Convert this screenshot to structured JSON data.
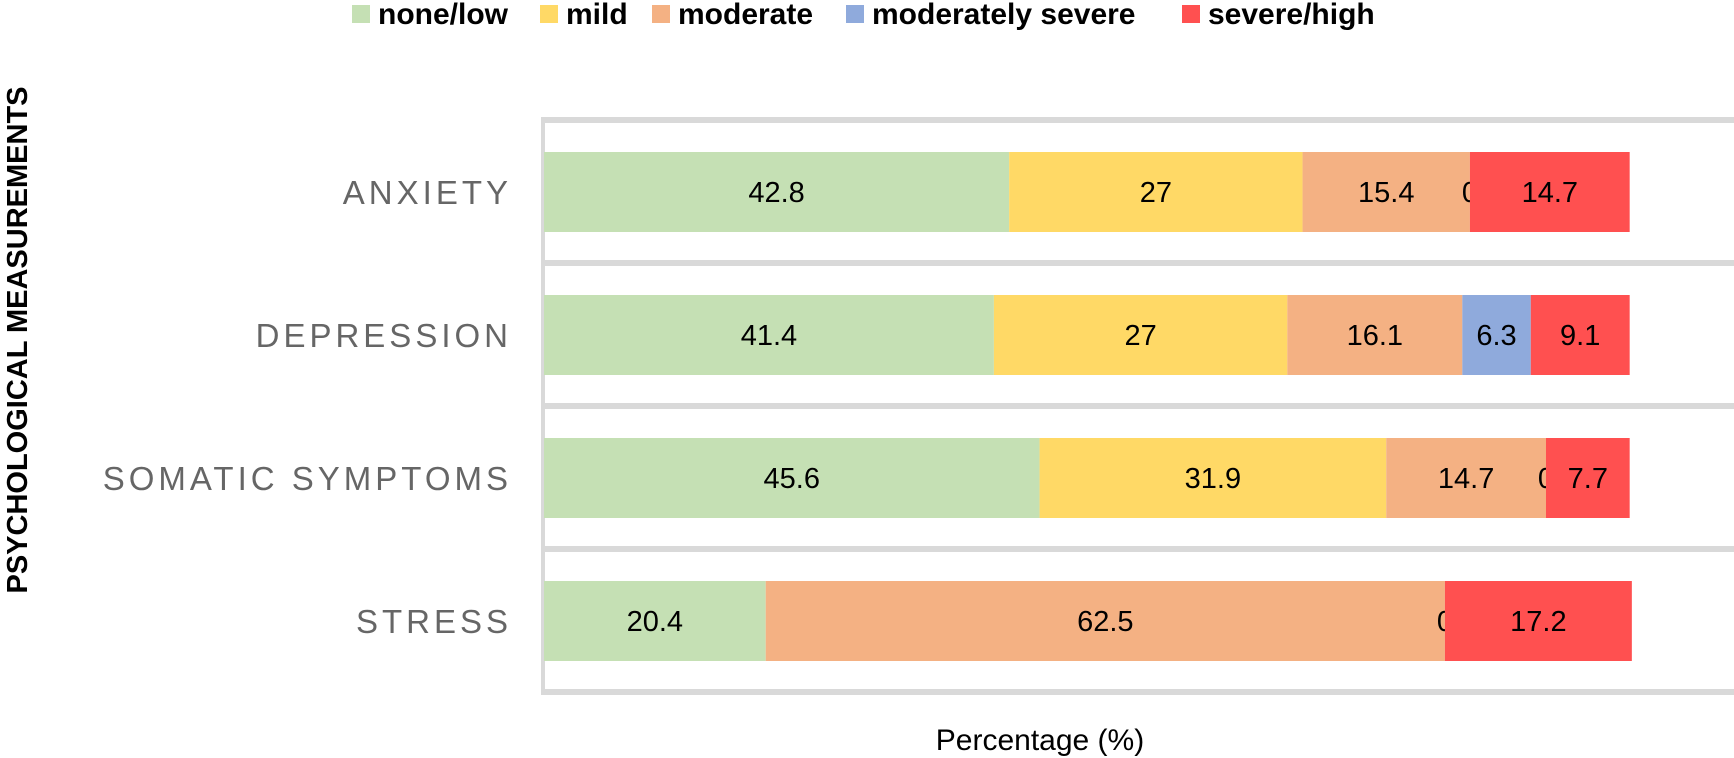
{
  "chart_data": {
    "type": "bar",
    "orientation": "horizontal",
    "stacked": true,
    "title": "",
    "xlabel": "Percentage (%)",
    "ylabel": "PSYCHOLOGICAL MEASUREMENTS",
    "xlim": [
      0,
      109.5
    ],
    "categories": [
      "ANXIETY",
      "DEPRESSION",
      "SOMATIC SYMPTOMS",
      "STRESS"
    ],
    "series": [
      {
        "name": "none/low",
        "color": "#c5e0b4",
        "values": [
          42.8,
          41.4,
          45.6,
          20.4
        ]
      },
      {
        "name": "mild",
        "color": "#ffd966",
        "values": [
          27,
          27,
          31.9,
          null
        ]
      },
      {
        "name": "moderate",
        "color": "#f4b183",
        "values": [
          15.4,
          16.1,
          14.7,
          62.5
        ]
      },
      {
        "name": "moderately severe",
        "color": "#8faadc",
        "values": [
          0,
          6.3,
          0,
          0
        ]
      },
      {
        "name": "severe/high",
        "color": "#ff5050",
        "values": [
          14.7,
          9.1,
          7.7,
          17.2
        ]
      }
    ],
    "legend_position": "top"
  }
}
